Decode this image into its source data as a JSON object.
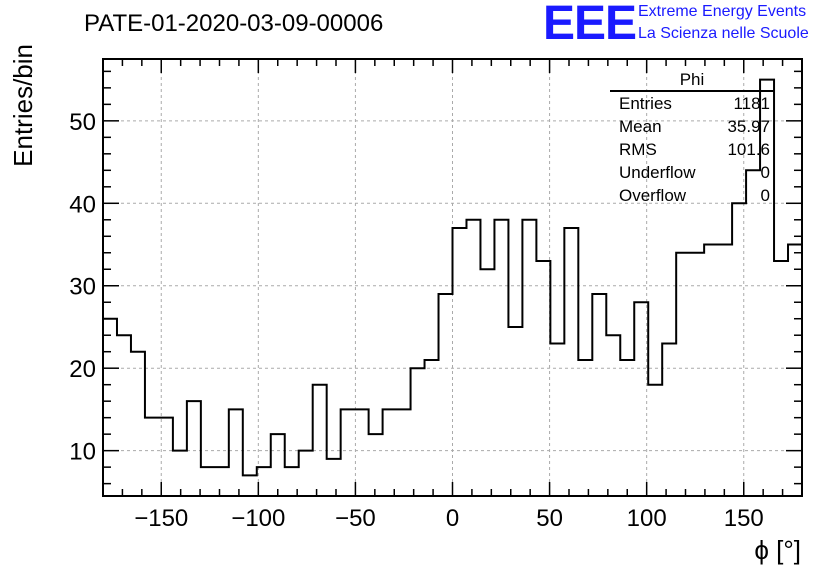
{
  "header": {
    "title": "PATE-01-2020-03-09-00006",
    "logo": "EEE",
    "org_line1": "Extreme Energy Events",
    "org_line2": "La Scienza nelle Scuole"
  },
  "stats": {
    "name": "Phi",
    "rows": [
      {
        "label": "Entries",
        "value": "1181"
      },
      {
        "label": "Mean",
        "value": "35.97"
      },
      {
        "label": "RMS",
        "value": "101.6"
      },
      {
        "label": "Underflow",
        "value": "0"
      },
      {
        "label": "Overflow",
        "value": "0"
      }
    ]
  },
  "colors": {
    "logo": "#1a1aff",
    "line": "#000000",
    "grid": "#aaaaaa"
  },
  "chart_data": {
    "type": "bar",
    "histogram": true,
    "title": "PATE-01-2020-03-09-00006",
    "xlabel": "ϕ [°]",
    "ylabel": "Entries/bin",
    "xlim": [
      -180,
      180
    ],
    "ylim": [
      4.5,
      57.5
    ],
    "bin_width": 7.2,
    "grid": true,
    "xticks": [
      -150,
      -100,
      -50,
      0,
      50,
      100,
      150
    ],
    "xtick_labels": [
      "−150",
      "−100",
      "−50",
      "0",
      "50",
      "100",
      "150"
    ],
    "yticks": [
      10,
      20,
      30,
      40,
      50
    ],
    "yticks_labels": [
      "10",
      "20",
      "30",
      "40",
      "50"
    ],
    "values": [
      26,
      24,
      22,
      14,
      14,
      10,
      16,
      8,
      8,
      15,
      7,
      8,
      12,
      8,
      10,
      18,
      9,
      15,
      15,
      12,
      15,
      15,
      20,
      21,
      29,
      37,
      38,
      32,
      38,
      25,
      38,
      33,
      23,
      37,
      21,
      29,
      24,
      21,
      28,
      18,
      23,
      34,
      34,
      35,
      35,
      40,
      44,
      55,
      33,
      35
    ]
  }
}
